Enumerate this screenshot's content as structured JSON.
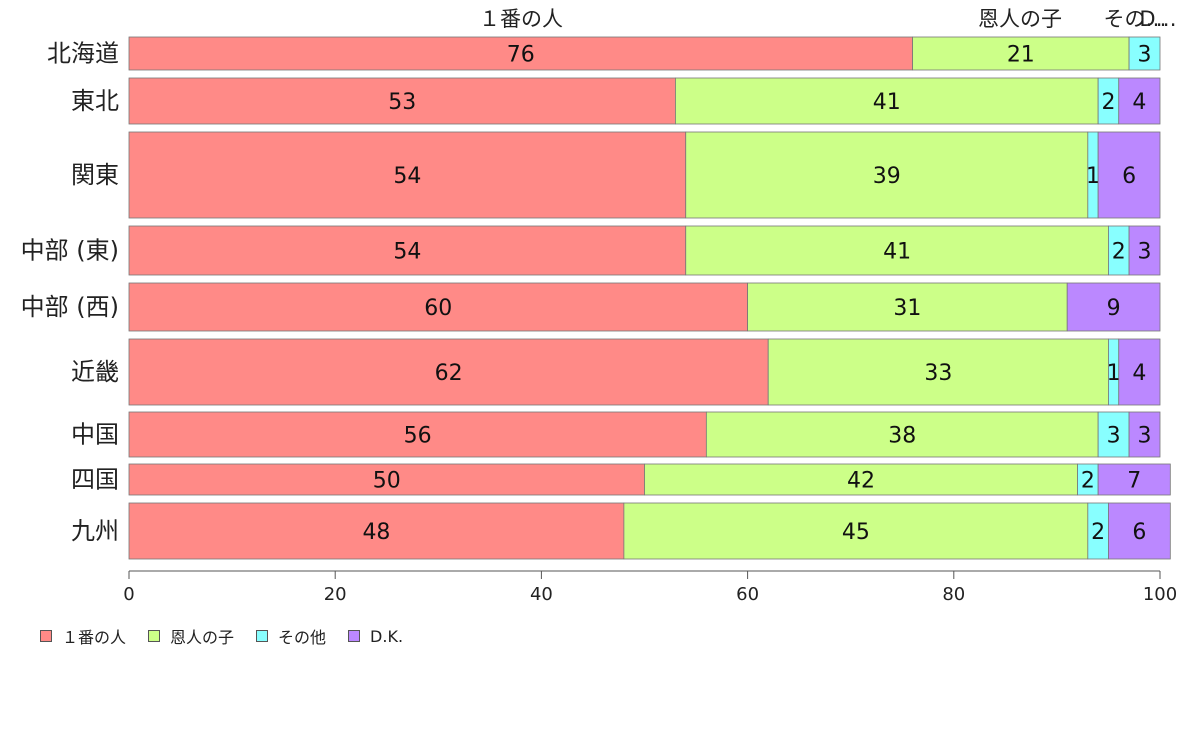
{
  "chart_data": {
    "type": "bar",
    "orientation": "horizontal",
    "stacked": true,
    "categories": [
      "北海道",
      "東北",
      "関東",
      "中部 (東)",
      "中部 (西)",
      "近畿",
      "中国",
      "四国",
      "九州"
    ],
    "series": [
      {
        "name": "１番の人",
        "color": "#ff8a87",
        "values": [
          76,
          53,
          54,
          54,
          60,
          62,
          56,
          50,
          48
        ],
        "labels": [
          "76",
          "53",
          "54",
          "54",
          "60",
          "62",
          "56",
          "50",
          "48"
        ]
      },
      {
        "name": "恩人の子",
        "color": "#ccff88",
        "values": [
          21,
          41,
          39,
          41,
          31,
          33,
          38,
          42,
          45
        ],
        "labels": [
          "21",
          "41",
          "39",
          "41",
          "31",
          "33",
          "38",
          "42",
          "45"
        ]
      },
      {
        "name": "その他",
        "color": "#88ffff",
        "values": [
          3,
          2,
          1,
          2,
          0,
          1,
          3,
          2,
          2
        ],
        "labels": [
          "3",
          "2",
          "1",
          "2",
          "",
          "1",
          "3",
          "2",
          "2"
        ]
      },
      {
        "name": "D.K.",
        "color": "#bb88ff",
        "values": [
          0,
          4,
          6,
          3,
          9,
          4,
          3,
          7,
          6
        ],
        "labels": [
          "",
          "4",
          "6",
          "3",
          "9",
          "4",
          "3",
          "7",
          "6"
        ]
      }
    ],
    "top_labels": [
      "１番の人",
      "恩人の子",
      "その…",
      "D…"
    ],
    "x_ticks": [
      "0",
      "20",
      "40",
      "60",
      "80",
      "100"
    ],
    "xlim": [
      0,
      100
    ],
    "legend_position": "bottom-left"
  }
}
